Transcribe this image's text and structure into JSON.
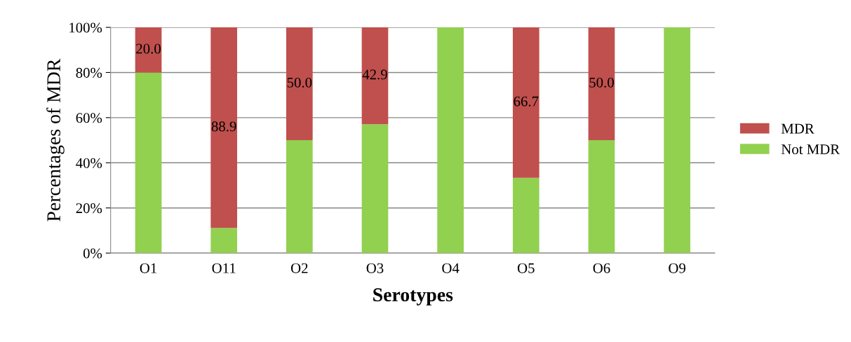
{
  "chart_data": {
    "type": "bar",
    "stacked": true,
    "xlabel": "Serotypes",
    "ylabel": "Percentages of MDR",
    "categories": [
      "O1",
      "O11",
      "O2",
      "O3",
      "O4",
      "O5",
      "O6",
      "O9"
    ],
    "series": [
      {
        "name": "Not MDR",
        "color": "#92d050",
        "values": [
          80,
          11.1,
          50,
          57.1,
          100,
          33.3,
          50,
          100
        ]
      },
      {
        "name": "MDR",
        "color": "#c0504d",
        "values": [
          20,
          88.9,
          50,
          42.9,
          0,
          66.7,
          50,
          0
        ],
        "value_labels": [
          "20.0",
          "88.9",
          "50.0",
          "42.9",
          null,
          "66.7",
          "50.0",
          null
        ]
      }
    ],
    "ylim": [
      0,
      100
    ],
    "yticks": [
      {
        "value": 0,
        "label": "0%"
      },
      {
        "value": 20,
        "label": "20%"
      },
      {
        "value": 40,
        "label": "40%"
      },
      {
        "value": 60,
        "label": "60%"
      },
      {
        "value": 80,
        "label": "80%"
      },
      {
        "value": 100,
        "label": "100%"
      }
    ],
    "grid": "y",
    "legend": "right"
  }
}
